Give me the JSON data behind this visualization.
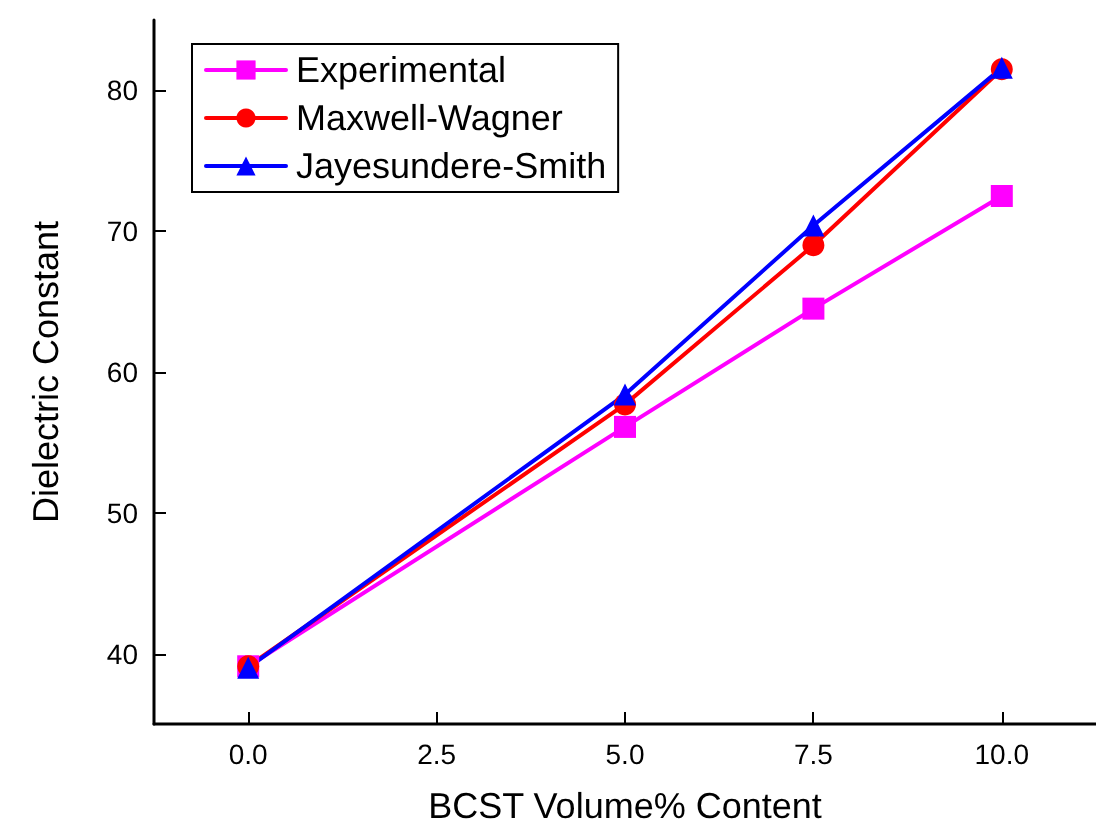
{
  "chart_data": {
    "type": "line",
    "xlabel": "BCST Volume% Content",
    "ylabel": "Dielectric Constant",
    "x": [
      0,
      5,
      7.5,
      10
    ],
    "series": [
      {
        "name": "Experimental",
        "color": "#ff00ff",
        "marker": "square",
        "values": [
          39.1,
          56.1,
          64.5,
          72.5
        ]
      },
      {
        "name": "Maxwell-Wagner",
        "color": "#ff0000",
        "marker": "circle",
        "values": [
          39.1,
          57.7,
          69.0,
          81.5
        ]
      },
      {
        "name": "Jayesundere-Smith",
        "color": "#0000ff",
        "marker": "triangle",
        "values": [
          39.0,
          58.4,
          70.4,
          81.6
        ]
      }
    ],
    "xlim": [
      -1.25,
      11.25
    ],
    "xticks": [
      {
        "value": 0,
        "label": "0.0"
      },
      {
        "value": 2.5,
        "label": "2.5"
      },
      {
        "value": 5,
        "label": "5.0"
      },
      {
        "value": 7.5,
        "label": "7.5"
      },
      {
        "value": 10,
        "label": "10.0"
      }
    ],
    "ylim": [
      35,
      85
    ],
    "yticks": [
      40,
      50,
      60,
      70,
      80
    ],
    "grid": false,
    "legend": "top left",
    "line_style": "solid"
  }
}
